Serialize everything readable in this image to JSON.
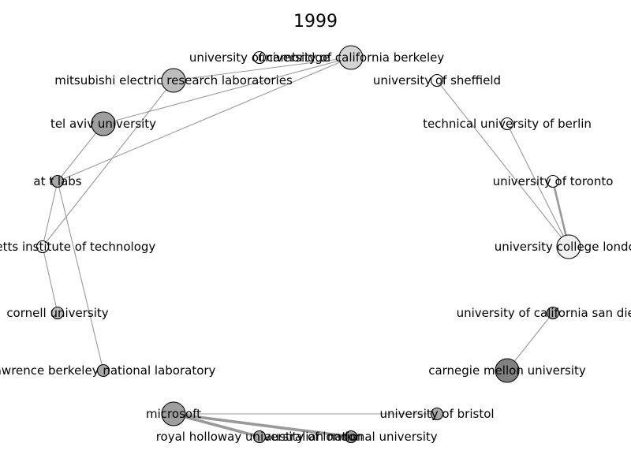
{
  "title": "1999",
  "nodes": [
    {
      "id": "ucb",
      "label": "university of california berkeley",
      "fill": "#d4d4d4",
      "size": "large"
    },
    {
      "id": "cam",
      "label": "university of cambridge",
      "fill": "#ffffff",
      "size": "small"
    },
    {
      "id": "merl",
      "label": "mitsubishi electric research laboratories",
      "fill": "#bdbdbd",
      "size": "large"
    },
    {
      "id": "tau",
      "label": "tel aviv university",
      "fill": "#9e9e9e",
      "size": "large"
    },
    {
      "id": "att",
      "label": "at t labs",
      "fill": "#a8a8a8",
      "size": "small"
    },
    {
      "id": "mit",
      "label": "massachusetts institute of technology",
      "fill": "#ffffff",
      "size": "small"
    },
    {
      "id": "cornell",
      "label": "cornell university",
      "fill": "#bdbdbd",
      "size": "small"
    },
    {
      "id": "lbnl",
      "label": "lawrence berkeley national laboratory",
      "fill": "#a8a8a8",
      "size": "small"
    },
    {
      "id": "msft",
      "label": "microsoft",
      "fill": "#9e9e9e",
      "size": "large"
    },
    {
      "id": "rhul",
      "label": "royal holloway university of london",
      "fill": "#a8a8a8",
      "size": "small"
    },
    {
      "id": "anu",
      "label": "australian national university",
      "fill": "#9e9e9e",
      "size": "small"
    },
    {
      "id": "bristol",
      "label": "university of bristol",
      "fill": "#a8a8a8",
      "size": "small"
    },
    {
      "id": "cmu",
      "label": "carnegie mellon university",
      "fill": "#808080",
      "size": "large"
    },
    {
      "id": "ucsd",
      "label": "university of california san diego",
      "fill": "#a8a8a8",
      "size": "small"
    },
    {
      "id": "ucl",
      "label": "university college london",
      "fill": "#f0f0f0",
      "size": "large"
    },
    {
      "id": "toronto",
      "label": "university of toronto",
      "fill": "#ffffff",
      "size": "small"
    },
    {
      "id": "tub",
      "label": "technical university of berlin",
      "fill": "#ffffff",
      "size": "small"
    },
    {
      "id": "sheffield",
      "label": "university of sheffield",
      "fill": "#ffffff",
      "size": "small"
    }
  ],
  "edges": [
    {
      "source": "ucb",
      "target": "merl",
      "weight": 1
    },
    {
      "source": "ucb",
      "target": "tau",
      "weight": 1
    },
    {
      "source": "ucb",
      "target": "att",
      "weight": 1
    },
    {
      "source": "merl",
      "target": "mit",
      "weight": 1
    },
    {
      "source": "tau",
      "target": "att",
      "weight": 1
    },
    {
      "source": "att",
      "target": "mit",
      "weight": 1
    },
    {
      "source": "att",
      "target": "lbnl",
      "weight": 1
    },
    {
      "source": "mit",
      "target": "cornell",
      "weight": 1
    },
    {
      "source": "msft",
      "target": "bristol",
      "weight": 1
    },
    {
      "source": "msft",
      "target": "rhul",
      "weight": 3
    },
    {
      "source": "msft",
      "target": "anu",
      "weight": 3
    },
    {
      "source": "sheffield",
      "target": "ucl",
      "weight": 1
    },
    {
      "source": "tub",
      "target": "ucl",
      "weight": 1
    },
    {
      "source": "toronto",
      "target": "ucl",
      "weight": 2
    },
    {
      "source": "ucsd",
      "target": "cmu",
      "weight": 1
    }
  ]
}
